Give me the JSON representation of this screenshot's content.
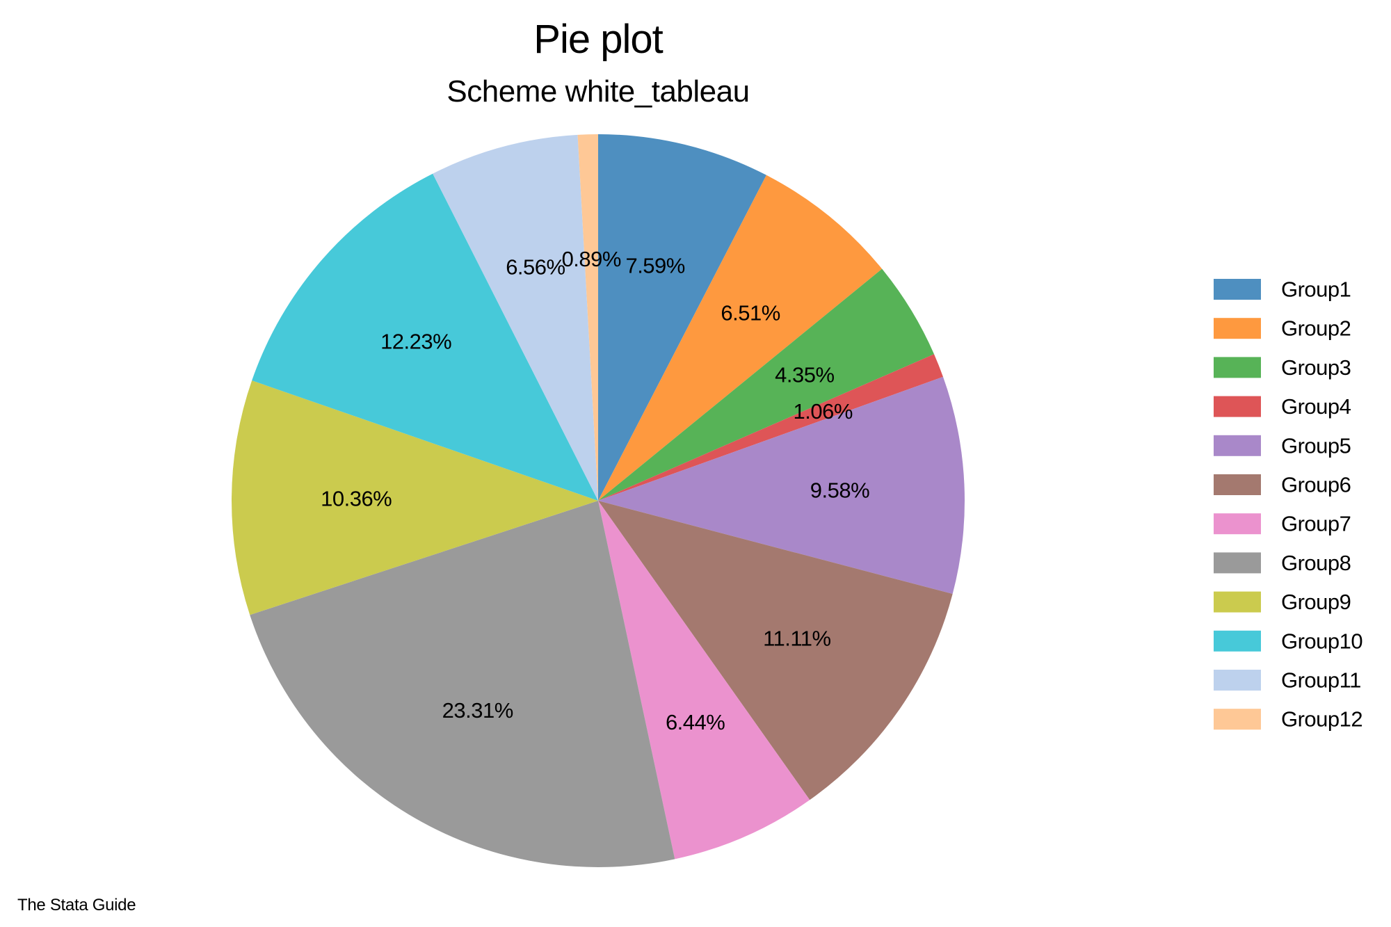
{
  "chart_data": {
    "type": "pie",
    "title": "Pie plot",
    "subtitle": "Scheme white_tableau",
    "note": "The Stata Guide",
    "legend_position": "right",
    "start_angle": "12 o'clock",
    "direction": "clockwise",
    "slices": [
      {
        "name": "Group1",
        "value": 7.59,
        "label": "7.59%",
        "color": "#4e8fc0"
      },
      {
        "name": "Group2",
        "value": 6.51,
        "label": "6.51%",
        "color": "#fe993f"
      },
      {
        "name": "Group3",
        "value": 4.35,
        "label": "4.35%",
        "color": "#57b357"
      },
      {
        "name": "Group4",
        "value": 1.06,
        "label": "1.06%",
        "color": "#de5557"
      },
      {
        "name": "Group5",
        "value": 9.58,
        "label": "9.58%",
        "color": "#a988c9"
      },
      {
        "name": "Group6",
        "value": 11.11,
        "label": "11.11%",
        "color": "#a4796f"
      },
      {
        "name": "Group7",
        "value": 6.44,
        "label": "6.44%",
        "color": "#eb92ce"
      },
      {
        "name": "Group8",
        "value": 23.31,
        "label": "23.31%",
        "color": "#9a9a9a"
      },
      {
        "name": "Group9",
        "value": 10.36,
        "label": "10.36%",
        "color": "#cbcb4e"
      },
      {
        "name": "Group10",
        "value": 12.23,
        "label": "12.23%",
        "color": "#47c9d9"
      },
      {
        "name": "Group11",
        "value": 6.56,
        "label": "6.56%",
        "color": "#bdd1ed"
      },
      {
        "name": "Group12",
        "value": 0.89,
        "label": "0.89%",
        "color": "#fec896"
      }
    ]
  }
}
